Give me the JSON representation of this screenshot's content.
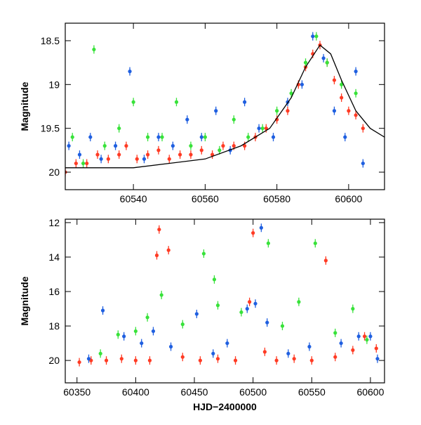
{
  "colors": {
    "red": "#ff3b24",
    "green": "#38e23a",
    "blue": "#1f5fe0",
    "model": "#000000"
  },
  "chart_data": [
    {
      "type": "scatter",
      "panel": "top",
      "title": "",
      "xlabel": "",
      "ylabel": "Magnitude",
      "xlim": [
        60521,
        60610
      ],
      "ylim": [
        20.2,
        18.3
      ],
      "y_inverted": true,
      "xticks": [
        60540,
        60560,
        60580,
        60600
      ],
      "yticks": [
        18.5,
        19,
        19.5,
        20
      ],
      "ytick_labels": [
        "18.5",
        "19",
        "19.5",
        "20"
      ],
      "grid": false,
      "legend": "none",
      "series": [
        {
          "color": "red",
          "x": [
            60521,
            60524,
            60527,
            60530,
            60533,
            60536,
            60538,
            60541,
            60544,
            60547,
            60550,
            60553,
            60556,
            60559,
            60562,
            60565,
            60568,
            60571,
            60574,
            60577,
            60580,
            60583,
            60586,
            60588,
            60590,
            60592,
            60594,
            60596,
            60598,
            60600,
            60602,
            60604
          ],
          "y": [
            20.0,
            19.9,
            19.9,
            19.8,
            19.85,
            19.8,
            19.7,
            19.85,
            19.8,
            19.75,
            19.85,
            19.8,
            19.8,
            19.75,
            19.8,
            19.7,
            19.7,
            19.7,
            19.6,
            19.5,
            19.4,
            19.3,
            19.0,
            18.8,
            18.65,
            18.55,
            18.75,
            18.95,
            19.15,
            19.3,
            19.35,
            19.5
          ]
        },
        {
          "color": "green",
          "x": [
            60523,
            60526,
            60529,
            60532,
            60536,
            60540,
            60544,
            60548,
            60552,
            60556,
            60560,
            60564,
            60568,
            60572,
            60576,
            60580,
            60584,
            60588,
            60591,
            60594,
            60598,
            60602
          ],
          "y": [
            19.6,
            19.9,
            18.6,
            19.7,
            19.5,
            19.2,
            19.6,
            19.6,
            19.2,
            19.7,
            19.6,
            19.75,
            19.4,
            19.6,
            19.5,
            19.3,
            19.1,
            18.75,
            18.45,
            18.75,
            19.0,
            19.1
          ]
        },
        {
          "color": "blue",
          "x": [
            60522,
            60525,
            60528,
            60531,
            60535,
            60539,
            60543,
            60547,
            60551,
            60555,
            60559,
            60563,
            60567,
            60571,
            60575,
            60579,
            60583,
            60587,
            60590,
            60593,
            60596,
            60599,
            60602,
            60604
          ],
          "y": [
            19.7,
            19.8,
            19.6,
            19.85,
            19.7,
            18.85,
            19.85,
            19.6,
            19.7,
            19.4,
            19.6,
            19.3,
            19.75,
            19.2,
            19.5,
            19.6,
            19.2,
            19.0,
            18.45,
            18.7,
            19.3,
            19.6,
            18.85,
            19.9
          ]
        }
      ],
      "model_curve": {
        "x": [
          60521,
          60540,
          60560,
          60570,
          60578,
          60584,
          60588,
          60592,
          60595,
          60598,
          60602,
          60606,
          60610
        ],
        "y": [
          19.95,
          19.95,
          19.85,
          19.7,
          19.5,
          19.15,
          18.8,
          18.55,
          18.65,
          18.95,
          19.3,
          19.5,
          19.6
        ]
      }
    },
    {
      "type": "scatter",
      "panel": "bottom",
      "title": "",
      "xlabel": "HJD−2400000",
      "ylabel": "Magnitude",
      "xlim": [
        60340,
        60612
      ],
      "ylim": [
        21.3,
        11.8
      ],
      "y_inverted": true,
      "xticks": [
        60350,
        60400,
        60450,
        60500,
        60550,
        60600
      ],
      "yticks": [
        12,
        14,
        16,
        18,
        20
      ],
      "ytick_labels": [
        "12",
        "14",
        "16",
        "18",
        "20"
      ],
      "grid": false,
      "legend": "none",
      "series": [
        {
          "color": "red",
          "x": [
            60352,
            60362,
            60375,
            60388,
            60400,
            60412,
            60418,
            60420,
            60428,
            60440,
            60455,
            60470,
            60485,
            60497,
            60500,
            60510,
            60520,
            60535,
            60550,
            60562,
            60570,
            60585,
            60595,
            60605
          ],
          "y": [
            20.1,
            20.0,
            20.0,
            19.9,
            20.0,
            20.0,
            13.9,
            12.4,
            13.6,
            19.8,
            20.0,
            19.9,
            20.0,
            16.6,
            12.6,
            19.5,
            20.0,
            19.9,
            20.0,
            14.2,
            19.8,
            19.4,
            18.6,
            19.3
          ]
        },
        {
          "color": "green",
          "x": [
            60370,
            60385,
            60400,
            60410,
            60422,
            60440,
            60458,
            60467,
            60470,
            60490,
            60513,
            60525,
            60539,
            60553,
            60570,
            60585,
            60597
          ],
          "y": [
            19.6,
            18.5,
            18.3,
            17.5,
            16.2,
            17.9,
            13.8,
            15.3,
            16.8,
            17.2,
            13.2,
            18.0,
            16.6,
            13.2,
            18.4,
            17.0,
            18.8
          ]
        },
        {
          "color": "blue",
          "x": [
            60360,
            60372,
            60390,
            60405,
            60415,
            60430,
            60452,
            60466,
            60478,
            60495,
            60502,
            60507,
            60512,
            60530,
            60548,
            60575,
            60590,
            60600,
            60606
          ],
          "y": [
            19.9,
            17.1,
            18.6,
            19.0,
            18.3,
            19.2,
            17.3,
            19.6,
            19.0,
            17.0,
            16.7,
            12.3,
            17.8,
            19.6,
            19.2,
            19.0,
            18.6,
            18.6,
            19.9
          ]
        }
      ]
    }
  ]
}
